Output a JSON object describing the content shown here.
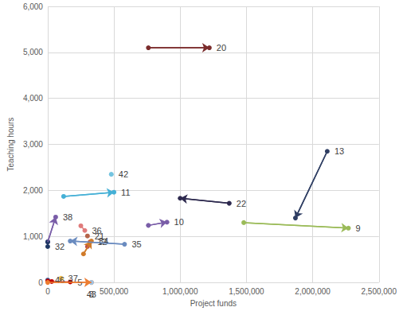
{
  "chart_data": {
    "type": "scatter",
    "x_label": "Project funds",
    "y_label": "Teaching hours",
    "xlim": [
      0,
      2500000
    ],
    "xticks": [
      0,
      500000,
      1000000,
      1500000,
      2000000,
      2500000
    ],
    "ylim": [
      0,
      6000
    ],
    "yticks": [
      0,
      1000,
      2000,
      3000,
      4000,
      5000,
      6000
    ],
    "grid": true,
    "series": [
      {
        "name": "20",
        "color": "#7b2c2c",
        "marker": "arrow",
        "values": [
          [
            760000,
            5100
          ],
          [
            1220000,
            5100
          ]
        ]
      },
      {
        "name": "42",
        "color": "#74c4e0",
        "marker": "circle",
        "values": [
          [
            480000,
            2350
          ]
        ]
      },
      {
        "name": "11",
        "color": "#45b0d6",
        "marker": "arrow",
        "values": [
          [
            120000,
            1870
          ],
          [
            500000,
            1960
          ]
        ]
      },
      {
        "name": "13",
        "color": "#2f3e63",
        "marker": "arrow",
        "values": [
          [
            2110000,
            2850
          ],
          [
            1870000,
            1400
          ]
        ]
      },
      {
        "name": "22",
        "color": "#2e2a4f",
        "marker": "arrow",
        "values": [
          [
            1370000,
            1720
          ],
          [
            1000000,
            1830
          ]
        ]
      },
      {
        "name": "10",
        "color": "#7a5ea8",
        "marker": "arrow",
        "values": [
          [
            760000,
            1240
          ],
          [
            900000,
            1310
          ]
        ]
      },
      {
        "name": "9",
        "color": "#9bbb59",
        "marker": "arrow",
        "values": [
          [
            1480000,
            1300
          ],
          [
            2270000,
            1180
          ]
        ]
      },
      {
        "name": "38",
        "color": "#7a5ea8",
        "marker": "arrow",
        "values": [
          [
            0,
            880
          ],
          [
            60000,
            1420
          ]
        ]
      },
      {
        "name": "32",
        "color": "#1f3864",
        "marker": "circle",
        "values": [
          [
            0,
            780
          ],
          [
            0,
            880
          ]
        ]
      },
      {
        "name": "36",
        "color": "#e07b7b",
        "marker": "circle",
        "values": [
          [
            250000,
            1230
          ],
          [
            280000,
            1130
          ]
        ]
      },
      {
        "name": "21",
        "color": "#b5654a",
        "marker": "circle",
        "values": [
          [
            300000,
            1010
          ]
        ]
      },
      {
        "name": "12",
        "color": "#c0504d",
        "marker": "circle",
        "values": [
          [
            300000,
            780
          ],
          [
            320000,
            880
          ]
        ]
      },
      {
        "name": "34",
        "color": "#d07b2a",
        "marker": "arrow",
        "values": [
          [
            270000,
            620
          ],
          [
            330000,
            900
          ]
        ]
      },
      {
        "name": "35",
        "color": "#6b8cc0",
        "marker": "arrow",
        "values": [
          [
            580000,
            830
          ],
          [
            170000,
            900
          ]
        ]
      },
      {
        "name": "46",
        "color": "#2f5597",
        "marker": "circle",
        "values": [
          [
            0,
            50
          ]
        ]
      },
      {
        "name": "5",
        "color": "#c00000",
        "marker": "circle",
        "values": [
          [
            0,
            30
          ],
          [
            30000,
            20
          ],
          [
            170000,
            10
          ]
        ]
      },
      {
        "name": "37",
        "color": "#f2c14e",
        "marker": "circle",
        "values": [
          [
            100000,
            90
          ]
        ]
      },
      {
        "name": "3",
        "color": "#ed7d31",
        "marker": "arrow",
        "values": [
          [
            0,
            0
          ],
          [
            330000,
            0
          ]
        ]
      },
      {
        "name": "43",
        "color": "#9dc3e6",
        "marker": "circle",
        "values": [
          [
            330000,
            0
          ]
        ]
      }
    ]
  }
}
